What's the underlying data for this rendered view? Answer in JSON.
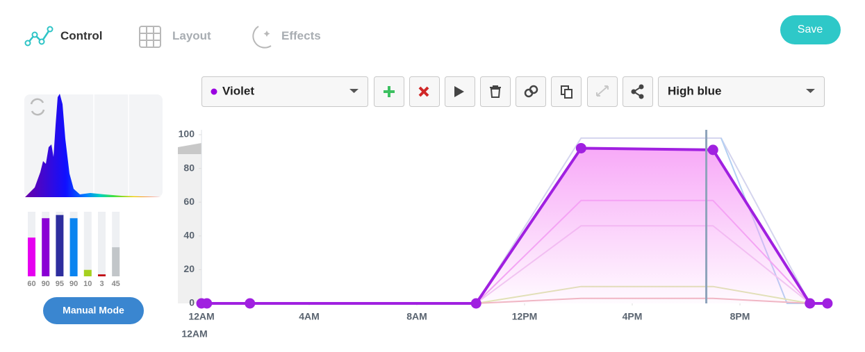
{
  "tabs": [
    {
      "label": "Control"
    },
    {
      "label": "Layout"
    },
    {
      "label": "Effects"
    }
  ],
  "save_button": "Save",
  "manual_button": "Manual Mode",
  "toolbar": {
    "channel": "Violet",
    "profile": "High blue"
  },
  "chart_data": [
    {
      "type": "line",
      "xlim": [
        0,
        24
      ],
      "ylim": [
        0,
        100
      ],
      "xticks": [
        {
          "value": 0,
          "label": "12AM"
        },
        {
          "value": 4,
          "label": "4AM"
        },
        {
          "value": 8,
          "label": "8AM"
        },
        {
          "value": 12,
          "label": "12PM"
        },
        {
          "value": 16,
          "label": "4PM"
        },
        {
          "value": 20,
          "label": "8PM"
        }
      ],
      "yticks": [
        0,
        20,
        40,
        60,
        80,
        100
      ],
      "x_annotation": "12AM",
      "cursor_x": 18.75,
      "cursor_color": "#8ea3bb",
      "series": [
        {
          "color": "#d4d4ee",
          "x": [
            10.2,
            14.1,
            19.3,
            22.6
          ],
          "values": [
            0,
            98,
            98,
            0
          ]
        },
        {
          "color": "#b4d0f2",
          "x": [
            19.3,
            21.75,
            22.6
          ],
          "values": [
            98,
            0,
            0
          ]
        },
        {
          "color": "#f2a6f2",
          "x": [
            10.2,
            14.1,
            19.0,
            22.6
          ],
          "values": [
            0,
            61,
            61,
            0
          ]
        },
        {
          "color": "#f0cdf0",
          "x": [
            10.2,
            14.1,
            19.0,
            22.6
          ],
          "values": [
            0,
            46,
            46,
            0
          ]
        },
        {
          "color": "#dfe6b0",
          "x": [
            10.2,
            14.1,
            19.0,
            22.6
          ],
          "values": [
            0,
            10,
            10,
            0
          ]
        },
        {
          "color": "#f0b8c0",
          "x": [
            10.2,
            14.1,
            19.0,
            22.6
          ],
          "values": [
            0,
            3,
            3,
            0
          ]
        },
        {
          "color": "#a020e0",
          "fill": "#f7a0f7",
          "points": true,
          "x": [
            0,
            0.2,
            1.8,
            10.2,
            14.1,
            19.0,
            22.6,
            23.25
          ],
          "values": [
            0,
            0,
            0,
            0,
            92,
            91,
            0,
            0
          ]
        }
      ]
    },
    {
      "type": "bar",
      "ylim": [
        0,
        100
      ],
      "values": [
        60,
        90,
        95,
        90,
        10,
        3,
        45
      ],
      "colors": [
        "#e600f0",
        "#8a00d4",
        "#2e2e9e",
        "#0a84f0",
        "#a6d020",
        "#c00010",
        "#c2c6c9"
      ]
    }
  ]
}
